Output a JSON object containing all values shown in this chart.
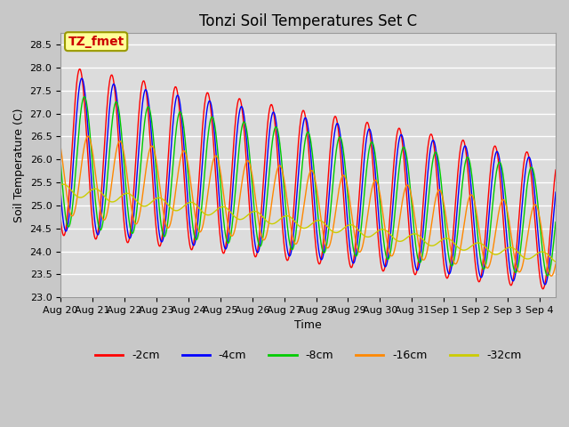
{
  "title": "Tonzi Soil Temperatures Set C",
  "xlabel": "Time",
  "ylabel": "Soil Temperature (C)",
  "label_box": "TZ_fmet",
  "label_box_color": "#ffff99",
  "label_box_text_color": "#cc0000",
  "series_colors": [
    "#ff0000",
    "#0000ff",
    "#00cc00",
    "#ff8800",
    "#cccc00"
  ],
  "series_labels": [
    "-2cm",
    "-4cm",
    "-8cm",
    "-16cm",
    "-32cm"
  ],
  "ylim": [
    23.0,
    28.75
  ],
  "yticks": [
    23.0,
    23.5,
    24.0,
    24.5,
    25.0,
    25.5,
    26.0,
    26.5,
    27.0,
    27.5,
    28.0,
    28.5
  ],
  "background_color": "#dcdcdc",
  "plot_bg_color": "#dcdcdc",
  "grid_color": "#ffffff",
  "title_fontsize": 12,
  "axis_fontsize": 9,
  "tick_fontsize": 8,
  "legend_fontsize": 9
}
